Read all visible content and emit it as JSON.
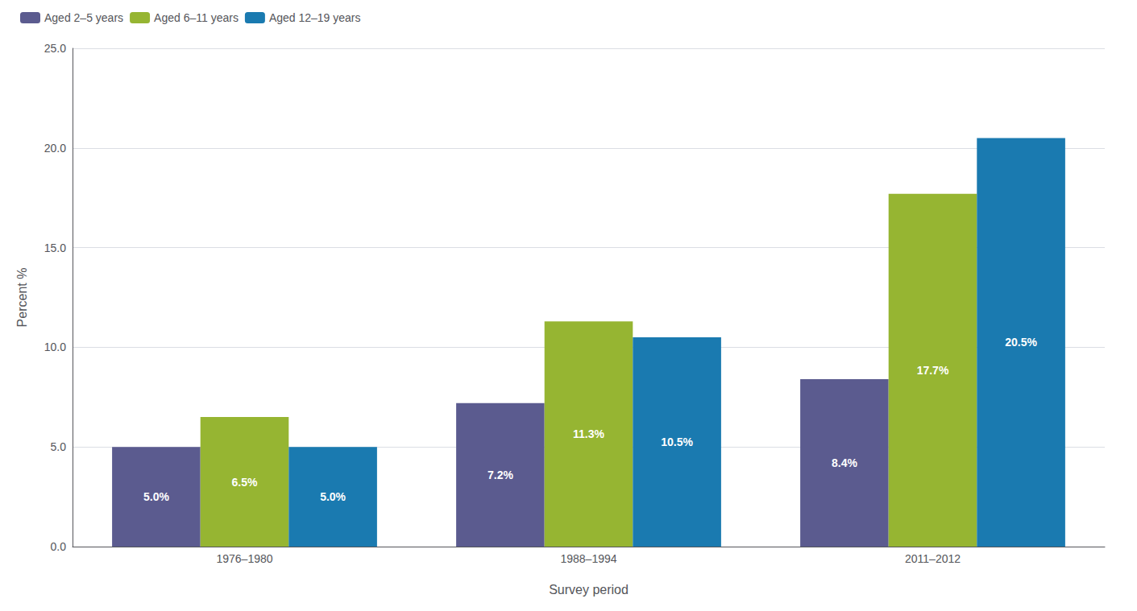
{
  "chart_data": {
    "type": "bar",
    "xlabel": "Survey period",
    "ylabel": "Percent %",
    "categories": [
      "1976–1980",
      "1988–1994",
      "2011–2012"
    ],
    "series": [
      {
        "name": "Aged 2–5 years",
        "color": "#5b5b8f",
        "values": [
          5.0,
          7.2,
          8.4
        ],
        "value_labels": [
          "5.0%",
          "7.2%",
          "8.4%"
        ]
      },
      {
        "name": "Aged 6–11 years",
        "color": "#96b532",
        "values": [
          6.5,
          11.3,
          17.7
        ],
        "value_labels": [
          "6.5%",
          "11.3%",
          "17.7%"
        ]
      },
      {
        "name": "Aged 12–19 years",
        "color": "#1a7ab0",
        "values": [
          5.0,
          10.5,
          20.5
        ],
        "value_labels": [
          "5.0%",
          "10.5%",
          "20.5%"
        ]
      }
    ],
    "ylim": [
      0,
      25.0
    ],
    "yticks": [
      {
        "value": 0.0,
        "label": "0.0"
      },
      {
        "value": 5.0,
        "label": "5.0"
      },
      {
        "value": 10.0,
        "label": "10.0"
      },
      {
        "value": 15.0,
        "label": "15.0"
      },
      {
        "value": 20.0,
        "label": "20.0"
      },
      {
        "value": 25.0,
        "label": "25.0"
      }
    ],
    "grid": true,
    "legend": "upper left",
    "data_labels": true
  }
}
